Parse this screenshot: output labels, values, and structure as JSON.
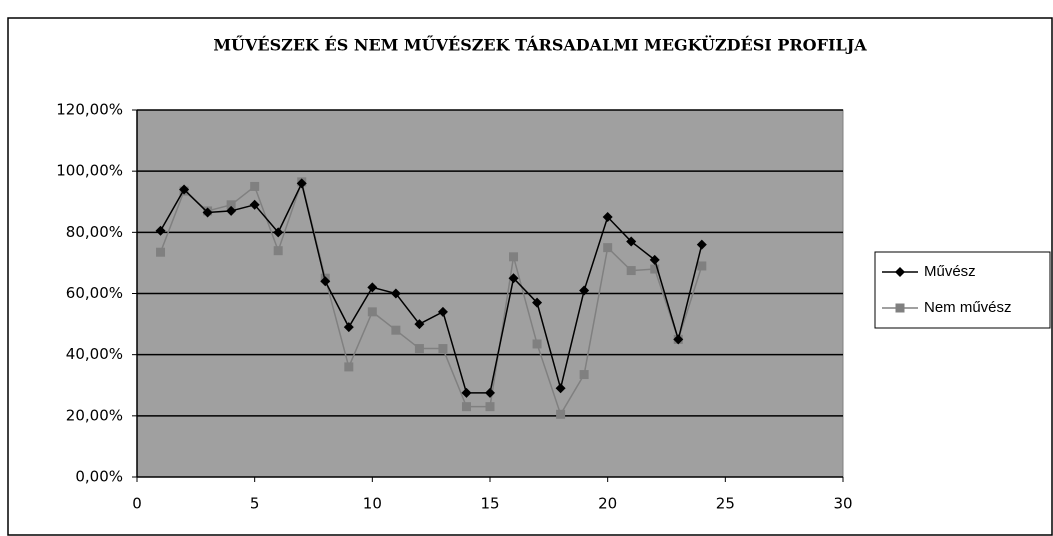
{
  "chart_data": {
    "type": "line",
    "title": "MŰVÉSZEK ÉS NEM MŰVÉSZEK TÁRSADALMI MEGKÜZDÉSI PROFILJA",
    "x": [
      1,
      2,
      3,
      4,
      5,
      6,
      7,
      8,
      9,
      10,
      11,
      12,
      13,
      14,
      15,
      16,
      17,
      18,
      19,
      20,
      21,
      22,
      23,
      24
    ],
    "series": [
      {
        "name": "Művész",
        "color": "#000000",
        "marker": "diamond",
        "values": [
          80.5,
          94,
          86.5,
          87,
          89,
          80,
          96,
          64,
          49,
          62,
          60,
          50,
          54,
          27.5,
          27.5,
          65,
          57,
          29,
          61,
          85,
          77,
          71,
          45,
          76
        ]
      },
      {
        "name": "Nem művész",
        "color": "#808080",
        "marker": "square",
        "values": [
          73.5,
          93.5,
          87,
          89,
          95,
          74,
          96.5,
          65,
          36,
          54,
          48,
          42,
          42,
          23,
          23,
          72,
          43.5,
          20.5,
          33.5,
          75,
          67.5,
          68,
          45,
          69
        ]
      }
    ],
    "xlim": [
      0,
      30
    ],
    "xticks": [
      0,
      5,
      10,
      15,
      20,
      25,
      30
    ],
    "ylim": [
      0,
      120
    ],
    "yticks": [
      {
        "value": 0,
        "label": "0,00%"
      },
      {
        "value": 20,
        "label": "20,00%"
      },
      {
        "value": 40,
        "label": "40,00%"
      },
      {
        "value": 60,
        "label": "60,00%"
      },
      {
        "value": 80,
        "label": "80,00%"
      },
      {
        "value": 100,
        "label": "100,00%"
      },
      {
        "value": 120,
        "label": "120,00%"
      }
    ],
    "grid": true,
    "plot_background": "#a0a0a0",
    "legend": "right"
  }
}
